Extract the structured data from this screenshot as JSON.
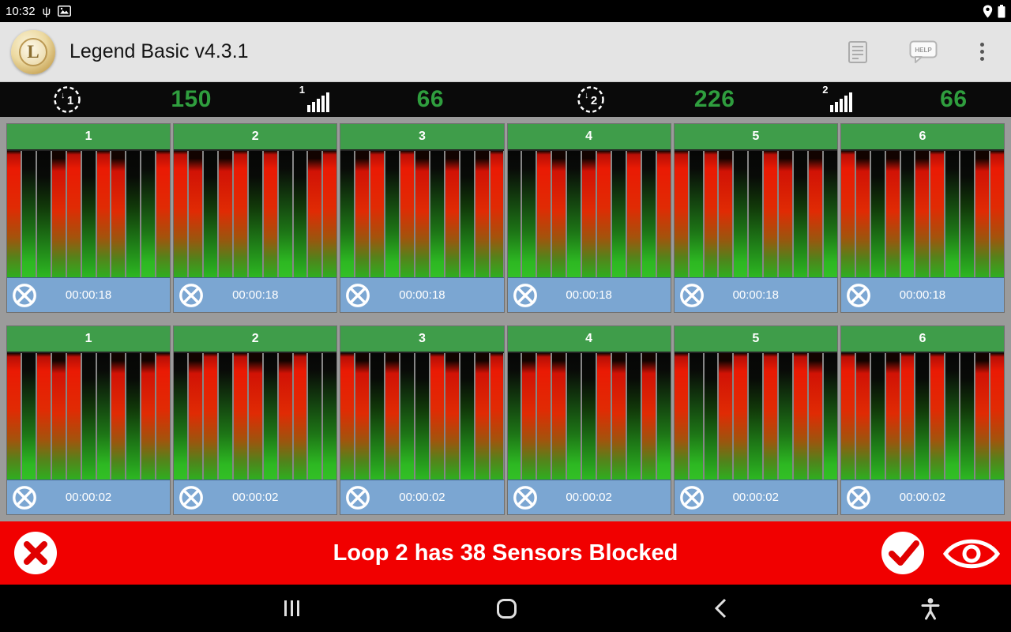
{
  "status_bar": {
    "time": "10:32"
  },
  "app_bar": {
    "title": "Legend Basic v4.3.1",
    "logo_letter": "L",
    "help_label": "HELP"
  },
  "stats_bar": {
    "loops": [
      {
        "loop_number": "1",
        "sensor_count": "150",
        "signal_number": "1",
        "signal_value": "66"
      },
      {
        "loop_number": "2",
        "sensor_count": "226",
        "signal_number": "2",
        "signal_value": "66"
      }
    ]
  },
  "sensor_rows": [
    {
      "timer": "00:00:18",
      "panels": [
        {
          "label": "1",
          "bars": "RGGRRGRRGGR"
        },
        {
          "label": "2",
          "bars": "RRGRRGRGGRR"
        },
        {
          "label": "3",
          "bars": "GRRGRRGRGRR"
        },
        {
          "label": "4",
          "bars": "GGRRGRRGRGR"
        },
        {
          "label": "5",
          "bars": "RGRRGGRRGRG"
        },
        {
          "label": "6",
          "bars": "RRGRGRRGGRR"
        }
      ]
    },
    {
      "timer": "00:00:02",
      "panels": [
        {
          "label": "1",
          "bars": "RGRRRGGRGRR"
        },
        {
          "label": "2",
          "bars": "GRRGRRGRRGG"
        },
        {
          "label": "3",
          "bars": "RRGRGGRRGRR"
        },
        {
          "label": "4",
          "bars": "GRRRGGRRGRG"
        },
        {
          "label": "5",
          "bars": "RGGRRGRGRRG"
        },
        {
          "label": "6",
          "bars": "RRGRRGRGGRR"
        }
      ]
    }
  ],
  "alert": {
    "message": "Loop 2 has 38 Sensors Blocked"
  },
  "colors": {
    "stat_green": "#2f9e3e",
    "panel_header_green": "#3f9d4a",
    "panel_footer_blue": "#7ba6d2",
    "alert_red": "#f10000",
    "blocked_bar_red": "#e02b04",
    "clear_bar_green": "#2db822"
  }
}
